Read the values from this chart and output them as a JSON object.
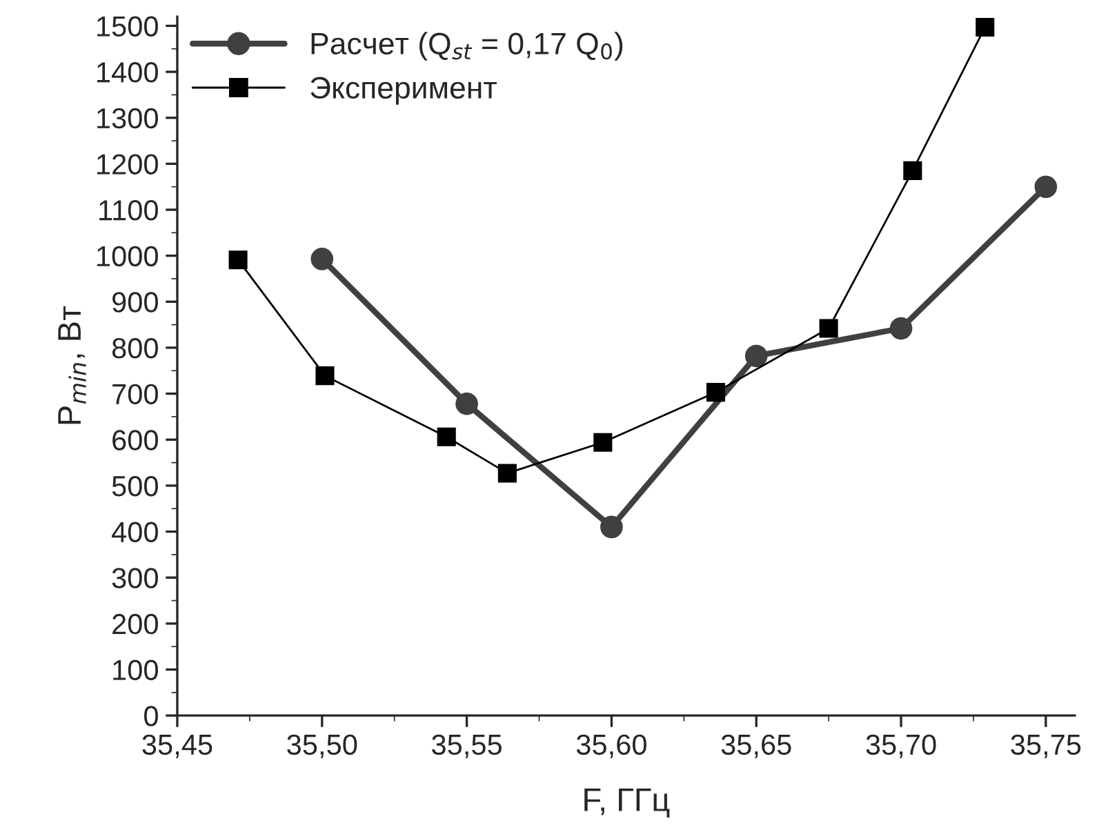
{
  "chart_data": {
    "type": "line",
    "xlabel": "F, ГГц",
    "ylabel": "P$_{min}$, Вт",
    "series": [
      {
        "name": "Расчет (Q$_{st}$ = 0,17 Q$_{0}$)",
        "color": "#404040",
        "marker": "circle",
        "line_style": "solid",
        "x": [
          35.5,
          35.55,
          35.6,
          35.65,
          35.7,
          35.75
        ],
        "values": [
          993,
          678,
          410,
          782,
          842,
          1150
        ]
      },
      {
        "name": "Эксперимент",
        "color": "#000000",
        "marker": "square",
        "line_style": "solid",
        "x": [
          35.471,
          35.501,
          35.543,
          35.564,
          35.597,
          35.636,
          35.675,
          35.704,
          35.729
        ],
        "values": [
          991,
          739,
          606,
          527,
          594,
          703,
          842,
          1185,
          1497
        ]
      }
    ],
    "xlim": [
      35.45,
      35.76
    ],
    "ylim": [
      0,
      1520
    ],
    "xticks": [
      {
        "value": 35.45,
        "label": "35,45"
      },
      {
        "value": 35.5,
        "label": "35,50"
      },
      {
        "value": 35.55,
        "label": "35,55"
      },
      {
        "value": 35.6,
        "label": "35,60"
      },
      {
        "value": 35.65,
        "label": "35,65"
      },
      {
        "value": 35.7,
        "label": "35,70"
      },
      {
        "value": 35.75,
        "label": "35,75"
      }
    ],
    "yticks": [
      0,
      100,
      200,
      300,
      400,
      500,
      600,
      700,
      800,
      900,
      1000,
      1100,
      1200,
      1300,
      1400,
      1500
    ],
    "grid": false,
    "legend": "top left"
  }
}
